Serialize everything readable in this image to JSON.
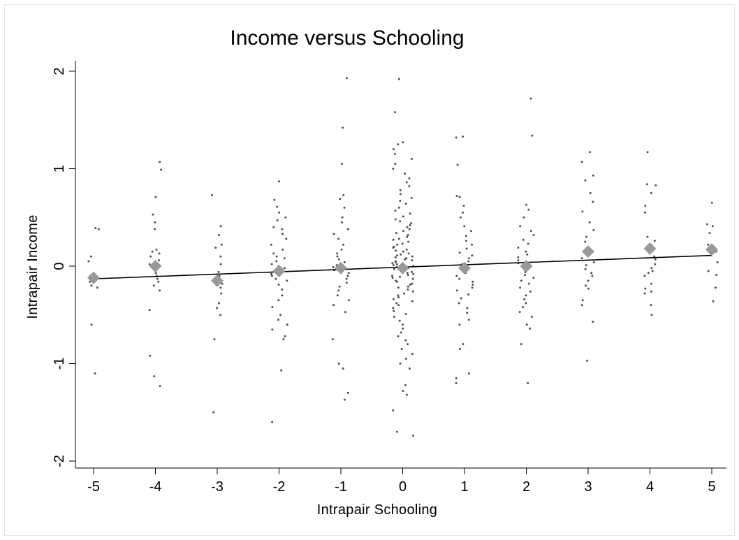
{
  "chart_data": {
    "type": "scatter",
    "title": "Income versus Schooling",
    "xlabel": "Intrapair Schooling",
    "ylabel": "Intrapair Income",
    "xlim": [
      -5.1,
      5.25
    ],
    "ylim": [
      -2.05,
      2.05
    ],
    "xticks": [
      -5,
      -4,
      -3,
      -2,
      -1,
      0,
      1,
      2,
      3,
      4,
      5
    ],
    "yticks": [
      -2,
      -1,
      0,
      1,
      2
    ],
    "xtick_labels": [
      "-5",
      "-4",
      "-3",
      "-2",
      "-1",
      "0",
      "1",
      "2",
      "3",
      "4",
      "5"
    ],
    "ytick_labels": [
      "-2",
      "-1",
      "0",
      "1",
      "2"
    ],
    "grid": false,
    "legend": "none",
    "colors": {
      "points": "#505050",
      "means": "#999999",
      "fit_line": "#000000"
    },
    "series": [
      {
        "type": "scatter",
        "points_by_x": [
          {
            "x": -5,
            "y": [
              0.39,
              0.38,
              0.1,
              0.05,
              -0.1,
              -0.13,
              -0.16,
              -0.2,
              -0.22,
              -0.6,
              -1.1
            ]
          },
          {
            "x": -4,
            "y": [
              1.07,
              0.99,
              0.71,
              0.53,
              0.45,
              0.38,
              0.17,
              0.15,
              0.13,
              0.1,
              0.06,
              0.02,
              0.0,
              -0.03,
              -0.07,
              -0.1,
              -0.13,
              -0.16,
              -0.2,
              -0.25,
              -0.45,
              -0.92,
              -1.13,
              -1.23
            ]
          },
          {
            "x": -3,
            "y": [
              0.73,
              0.41,
              0.32,
              0.22,
              0.19,
              0.1,
              0.02,
              -0.06,
              -0.1,
              -0.14,
              -0.18,
              -0.22,
              -0.28,
              -0.38,
              -0.43,
              -0.5,
              -0.75,
              -1.5
            ]
          },
          {
            "x": -2,
            "y": [
              0.87,
              0.68,
              0.61,
              0.55,
              0.5,
              0.47,
              0.4,
              0.38,
              0.33,
              0.28,
              0.22,
              0.17,
              0.13,
              0.1,
              0.08,
              0.05,
              0.02,
              0.0,
              -0.02,
              -0.05,
              -0.08,
              -0.1,
              -0.13,
              -0.15,
              -0.19,
              -0.24,
              -0.3,
              -0.35,
              -0.42,
              -0.5,
              -0.55,
              -0.6,
              -0.65,
              -0.72,
              -0.75,
              -1.07,
              -1.6
            ]
          },
          {
            "x": -1,
            "y": [
              1.93,
              1.42,
              1.05,
              0.73,
              0.69,
              0.6,
              0.5,
              0.45,
              0.38,
              0.33,
              0.28,
              0.22,
              0.17,
              0.13,
              0.1,
              0.07,
              0.04,
              0.01,
              -0.01,
              -0.04,
              -0.07,
              -0.1,
              -0.13,
              -0.17,
              -0.21,
              -0.25,
              -0.3,
              -0.35,
              -0.4,
              -0.47,
              -0.75,
              -1.0,
              -1.05,
              -1.3,
              -1.37
            ]
          },
          {
            "x": 0,
            "y": [
              1.92,
              1.58,
              1.27,
              1.25,
              1.2,
              1.15,
              1.1,
              1.05,
              1.0,
              0.95,
              0.9,
              0.86,
              0.82,
              0.78,
              0.74,
              0.7,
              0.67,
              0.64,
              0.6,
              0.57,
              0.54,
              0.51,
              0.48,
              0.46,
              0.44,
              0.42,
              0.4,
              0.38,
              0.36,
              0.34,
              0.32,
              0.3,
              0.28,
              0.27,
              0.25,
              0.23,
              0.22,
              0.2,
              0.19,
              0.17,
              0.16,
              0.15,
              0.13,
              0.12,
              0.11,
              0.1,
              0.09,
              0.08,
              0.07,
              0.06,
              0.05,
              0.04,
              0.03,
              0.02,
              0.01,
              0.0,
              -0.01,
              -0.02,
              -0.03,
              -0.04,
              -0.05,
              -0.06,
              -0.07,
              -0.08,
              -0.09,
              -0.1,
              -0.11,
              -0.12,
              -0.13,
              -0.15,
              -0.16,
              -0.18,
              -0.19,
              -0.21,
              -0.22,
              -0.24,
              -0.26,
              -0.28,
              -0.3,
              -0.32,
              -0.34,
              -0.36,
              -0.38,
              -0.4,
              -0.43,
              -0.46,
              -0.49,
              -0.52,
              -0.56,
              -0.6,
              -0.64,
              -0.68,
              -0.72,
              -0.76,
              -0.8,
              -0.85,
              -0.9,
              -0.95,
              -1.0,
              -1.05,
              -1.22,
              -1.28,
              -1.32,
              -1.48,
              -1.7,
              -1.74
            ]
          },
          {
            "x": 1,
            "y": [
              1.33,
              1.32,
              1.04,
              0.72,
              0.71,
              0.62,
              0.55,
              0.5,
              0.41,
              0.36,
              0.31,
              0.26,
              0.22,
              0.18,
              0.14,
              0.11,
              0.08,
              0.05,
              0.02,
              -0.01,
              -0.04,
              -0.07,
              -0.1,
              -0.13,
              -0.16,
              -0.19,
              -0.22,
              -0.25,
              -0.29,
              -0.33,
              -0.38,
              -0.43,
              -0.48,
              -0.55,
              -0.6,
              -0.8,
              -0.85,
              -1.1,
              -1.15,
              -1.2
            ]
          },
          {
            "x": 2,
            "y": [
              1.72,
              1.34,
              0.63,
              0.58,
              0.5,
              0.41,
              0.36,
              0.32,
              0.27,
              0.23,
              0.19,
              0.15,
              0.12,
              0.09,
              0.06,
              0.03,
              0.0,
              -0.03,
              -0.06,
              -0.09,
              -0.12,
              -0.15,
              -0.18,
              -0.22,
              -0.26,
              -0.3,
              -0.34,
              -0.38,
              -0.42,
              -0.47,
              -0.52,
              -0.6,
              -0.64,
              -0.8,
              -1.2
            ]
          },
          {
            "x": 3,
            "y": [
              1.17,
              1.07,
              0.93,
              0.88,
              0.75,
              0.66,
              0.56,
              0.45,
              0.37,
              0.3,
              0.25,
              0.19,
              0.13,
              0.08,
              0.04,
              0.01,
              -0.03,
              -0.07,
              -0.1,
              -0.15,
              -0.2,
              -0.23,
              -0.35,
              -0.4,
              -0.57,
              -0.97
            ]
          },
          {
            "x": 4,
            "y": [
              1.17,
              0.84,
              0.83,
              0.75,
              0.62,
              0.55,
              0.3,
              0.26,
              0.2,
              0.1,
              0.07,
              0.02,
              -0.02,
              -0.05,
              -0.07,
              -0.1,
              -0.18,
              -0.23,
              -0.26,
              -0.28,
              -0.4,
              -0.5
            ]
          },
          {
            "x": 5,
            "y": [
              0.65,
              0.43,
              0.41,
              0.34,
              0.22,
              0.15,
              0.04,
              -0.05,
              -0.09,
              -0.22,
              -0.36
            ]
          }
        ]
      },
      {
        "type": "scatter",
        "marker": "diamond",
        "x": [
          -5,
          -4,
          -3,
          -2,
          -1,
          0,
          1,
          2,
          3,
          4,
          5
        ],
        "y": [
          -0.12,
          0.0,
          -0.15,
          -0.05,
          -0.02,
          -0.02,
          -0.02,
          0.0,
          0.15,
          0.18,
          0.17
        ]
      },
      {
        "type": "line",
        "x": [
          -5,
          5
        ],
        "y": [
          -0.13,
          0.11
        ]
      }
    ]
  }
}
